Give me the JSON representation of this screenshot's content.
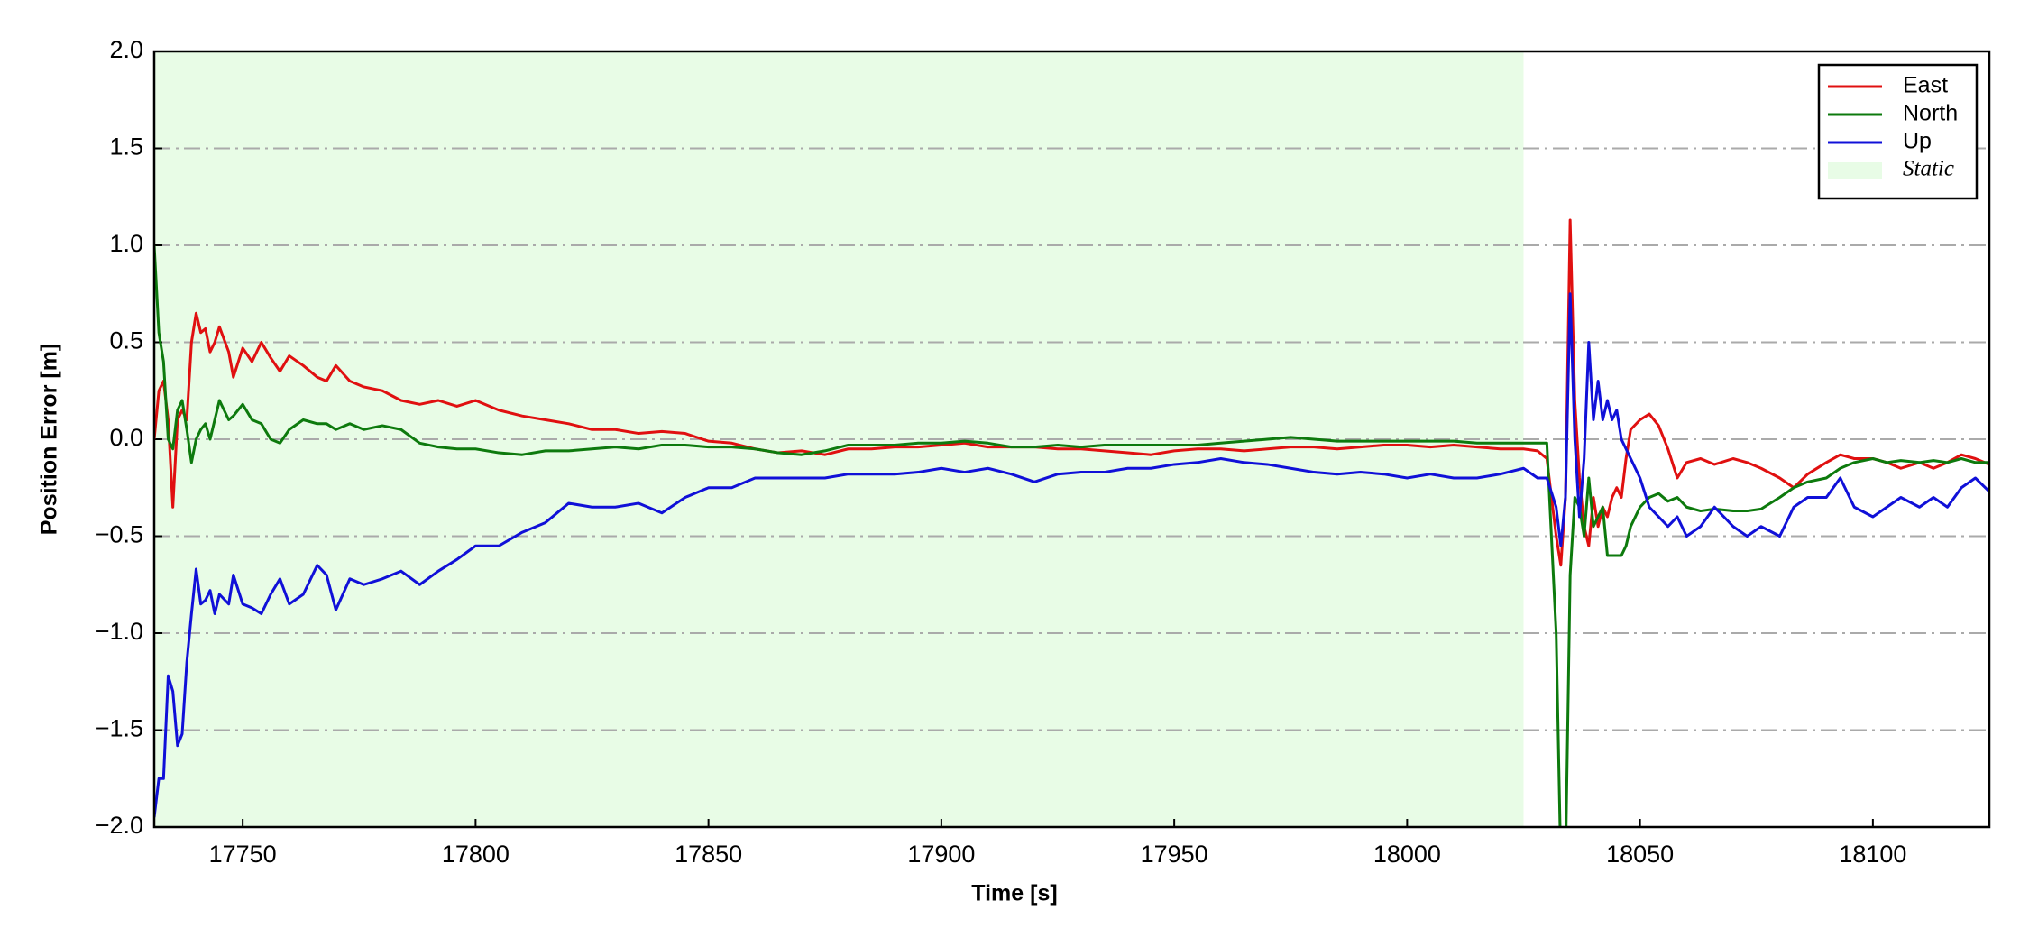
{
  "chart_data": {
    "type": "line",
    "xlabel": "Time [s]",
    "ylabel": "Position Error [m]",
    "x": [
      17731,
      17732,
      17733,
      17734,
      17735,
      17736,
      17737,
      17738,
      17739,
      17740,
      17741,
      17742,
      17743,
      17744,
      17745,
      17747,
      17748,
      17750,
      17752,
      17754,
      17756,
      17758,
      17760,
      17763,
      17766,
      17768,
      17770,
      17773,
      17776,
      17780,
      17784,
      17788,
      17792,
      17796,
      17800,
      17805,
      17810,
      17815,
      17820,
      17825,
      17830,
      17835,
      17840,
      17845,
      17850,
      17855,
      17860,
      17865,
      17870,
      17875,
      17880,
      17885,
      17890,
      17895,
      17900,
      17905,
      17910,
      17915,
      17920,
      17925,
      17930,
      17935,
      17940,
      17945,
      17950,
      17955,
      17960,
      17965,
      17970,
      17975,
      17980,
      17985,
      17990,
      17995,
      18000,
      18005,
      18010,
      18015,
      18020,
      18025,
      18028,
      18030,
      18032,
      18033,
      18034,
      18035,
      18036,
      18037,
      18038,
      18039,
      18040,
      18041,
      18042,
      18043,
      18044,
      18045,
      18046,
      18047,
      18048,
      18050,
      18052,
      18054,
      18056,
      18058,
      18060,
      18063,
      18066,
      18070,
      18073,
      18076,
      18080,
      18083,
      18086,
      18090,
      18093,
      18096,
      18100,
      18103,
      18106,
      18110,
      18113,
      18116,
      18119,
      18122,
      18125
    ],
    "series": [
      {
        "name": "East",
        "color": "#e01010",
        "values": [
          0.0,
          0.25,
          0.3,
          0.1,
          -0.35,
          0.1,
          0.15,
          0.1,
          0.5,
          0.65,
          0.55,
          0.57,
          0.45,
          0.5,
          0.58,
          0.45,
          0.32,
          0.47,
          0.4,
          0.5,
          0.42,
          0.35,
          0.43,
          0.38,
          0.32,
          0.3,
          0.38,
          0.3,
          0.27,
          0.25,
          0.2,
          0.18,
          0.2,
          0.17,
          0.2,
          0.15,
          0.12,
          0.1,
          0.08,
          0.05,
          0.05,
          0.03,
          0.04,
          0.03,
          -0.01,
          -0.02,
          -0.05,
          -0.07,
          -0.06,
          -0.08,
          -0.05,
          -0.05,
          -0.04,
          -0.04,
          -0.03,
          -0.02,
          -0.04,
          -0.04,
          -0.04,
          -0.05,
          -0.05,
          -0.06,
          -0.07,
          -0.08,
          -0.06,
          -0.05,
          -0.05,
          -0.06,
          -0.05,
          -0.04,
          -0.04,
          -0.05,
          -0.04,
          -0.03,
          -0.03,
          -0.04,
          -0.03,
          -0.04,
          -0.05,
          -0.05,
          -0.06,
          -0.1,
          -0.5,
          -0.65,
          -0.3,
          1.13,
          0.2,
          -0.2,
          -0.45,
          -0.55,
          -0.3,
          -0.45,
          -0.35,
          -0.4,
          -0.3,
          -0.25,
          -0.3,
          -0.1,
          0.05,
          0.1,
          0.13,
          0.07,
          -0.05,
          -0.2,
          -0.12,
          -0.1,
          -0.13,
          -0.1,
          -0.12,
          -0.15,
          -0.2,
          -0.25,
          -0.18,
          -0.12,
          -0.08,
          -0.1,
          -0.1,
          -0.12,
          -0.15,
          -0.12,
          -0.15,
          -0.12,
          -0.08,
          -0.1,
          -0.13
        ]
      },
      {
        "name": "North",
        "color": "#0d7a0d",
        "values": [
          1.0,
          0.55,
          0.4,
          0.0,
          -0.05,
          0.15,
          0.2,
          0.05,
          -0.12,
          0.0,
          0.05,
          0.08,
          0.0,
          0.1,
          0.2,
          0.1,
          0.12,
          0.18,
          0.1,
          0.08,
          0.0,
          -0.02,
          0.05,
          0.1,
          0.08,
          0.08,
          0.05,
          0.08,
          0.05,
          0.07,
          0.05,
          -0.02,
          -0.04,
          -0.05,
          -0.05,
          -0.07,
          -0.08,
          -0.06,
          -0.06,
          -0.05,
          -0.04,
          -0.05,
          -0.03,
          -0.03,
          -0.04,
          -0.04,
          -0.05,
          -0.07,
          -0.08,
          -0.06,
          -0.03,
          -0.03,
          -0.03,
          -0.02,
          -0.02,
          -0.01,
          -0.02,
          -0.04,
          -0.04,
          -0.03,
          -0.04,
          -0.03,
          -0.03,
          -0.03,
          -0.03,
          -0.03,
          -0.02,
          -0.01,
          0.0,
          0.01,
          0.0,
          -0.01,
          -0.01,
          -0.01,
          -0.01,
          -0.01,
          -0.01,
          -0.02,
          -0.02,
          -0.02,
          -0.02,
          -0.02,
          -1.0,
          -2.2,
          -2.2,
          -0.7,
          -0.3,
          -0.35,
          -0.5,
          -0.2,
          -0.45,
          -0.4,
          -0.35,
          -0.6,
          -0.6,
          -0.6,
          -0.6,
          -0.55,
          -0.45,
          -0.35,
          -0.3,
          -0.28,
          -0.32,
          -0.3,
          -0.35,
          -0.37,
          -0.36,
          -0.37,
          -0.37,
          -0.36,
          -0.3,
          -0.25,
          -0.22,
          -0.2,
          -0.15,
          -0.12,
          -0.1,
          -0.12,
          -0.11,
          -0.12,
          -0.11,
          -0.12,
          -0.1,
          -0.12,
          -0.12
        ]
      },
      {
        "name": "Up",
        "color": "#1010d8",
        "values": [
          -1.95,
          -1.75,
          -1.75,
          -1.22,
          -1.3,
          -1.58,
          -1.52,
          -1.15,
          -0.9,
          -0.67,
          -0.85,
          -0.83,
          -0.78,
          -0.9,
          -0.8,
          -0.85,
          -0.7,
          -0.85,
          -0.87,
          -0.9,
          -0.8,
          -0.72,
          -0.85,
          -0.8,
          -0.65,
          -0.7,
          -0.88,
          -0.72,
          -0.75,
          -0.72,
          -0.68,
          -0.75,
          -0.68,
          -0.62,
          -0.55,
          -0.55,
          -0.48,
          -0.43,
          -0.33,
          -0.35,
          -0.35,
          -0.33,
          -0.38,
          -0.3,
          -0.25,
          -0.25,
          -0.2,
          -0.2,
          -0.2,
          -0.2,
          -0.18,
          -0.18,
          -0.18,
          -0.17,
          -0.15,
          -0.17,
          -0.15,
          -0.18,
          -0.22,
          -0.18,
          -0.17,
          -0.17,
          -0.15,
          -0.15,
          -0.13,
          -0.12,
          -0.1,
          -0.12,
          -0.13,
          -0.15,
          -0.17,
          -0.18,
          -0.17,
          -0.18,
          -0.2,
          -0.18,
          -0.2,
          -0.2,
          -0.18,
          -0.15,
          -0.2,
          -0.2,
          -0.35,
          -0.55,
          -0.3,
          0.75,
          0.0,
          -0.4,
          -0.1,
          0.5,
          0.1,
          0.3,
          0.1,
          0.2,
          0.1,
          0.15,
          0.0,
          -0.05,
          -0.1,
          -0.2,
          -0.35,
          -0.4,
          -0.45,
          -0.4,
          -0.5,
          -0.45,
          -0.35,
          -0.45,
          -0.5,
          -0.45,
          -0.5,
          -0.35,
          -0.3,
          -0.3,
          -0.2,
          -0.35,
          -0.4,
          -0.35,
          -0.3,
          -0.35,
          -0.3,
          -0.35,
          -0.25,
          -0.2,
          -0.27
        ]
      }
    ],
    "shaded_region": {
      "name": "Static",
      "color": "#e8fce6",
      "x": [
        17731,
        18025
      ]
    },
    "xlim": [
      17731,
      18125
    ],
    "xticks": [
      17750,
      17800,
      17850,
      17900,
      17950,
      18000,
      18050,
      18100
    ],
    "ylim": [
      -2,
      2
    ],
    "yticks": [
      {
        "value": -2,
        "label": "−2.0"
      },
      {
        "value": -1.5,
        "label": "−1.5"
      },
      {
        "value": -1,
        "label": "−1.0"
      },
      {
        "value": -0.5,
        "label": "−0.5"
      },
      {
        "value": 0,
        "label": "0.0"
      },
      {
        "value": 0.5,
        "label": "0.5"
      },
      {
        "value": 1,
        "label": "1.0"
      },
      {
        "value": 1.5,
        "label": "1.5"
      },
      {
        "value": 2,
        "label": "2.0"
      }
    ],
    "grid": true,
    "legend": "upper right"
  }
}
